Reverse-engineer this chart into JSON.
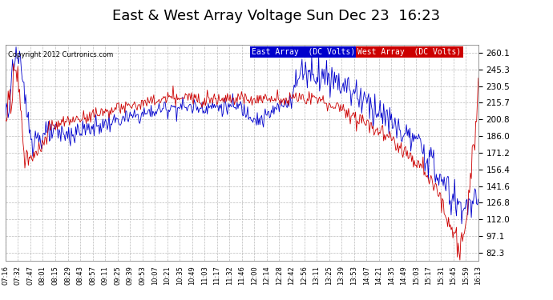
{
  "title": "East & West Array Voltage Sun Dec 23  16:23",
  "copyright": "Copyright 2012 Curtronics.com",
  "legend_east": "East Array  (DC Volts)",
  "legend_west": "West Array  (DC Volts)",
  "east_color": "#0000cc",
  "west_color": "#cc0000",
  "legend_east_bg": "#0000cc",
  "legend_west_bg": "#cc0000",
  "yticks": [
    82.3,
    97.1,
    112.0,
    126.8,
    141.6,
    156.4,
    171.2,
    186.0,
    200.8,
    215.7,
    230.5,
    245.3,
    260.1
  ],
  "ymin": 75.0,
  "ymax": 267.0,
  "background_color": "#ffffff",
  "grid_color": "#bbbbbb",
  "title_fontsize": 13,
  "x_labels": [
    "07:16",
    "07:32",
    "07:47",
    "08:01",
    "08:15",
    "08:29",
    "08:43",
    "08:57",
    "09:11",
    "09:25",
    "09:39",
    "09:53",
    "10:07",
    "10:21",
    "10:35",
    "10:49",
    "11:03",
    "11:17",
    "11:32",
    "11:46",
    "12:00",
    "12:14",
    "12:28",
    "12:42",
    "12:56",
    "13:11",
    "13:25",
    "13:39",
    "13:53",
    "14:07",
    "14:21",
    "14:35",
    "14:49",
    "15:03",
    "15:17",
    "15:31",
    "15:45",
    "15:59",
    "16:13"
  ]
}
